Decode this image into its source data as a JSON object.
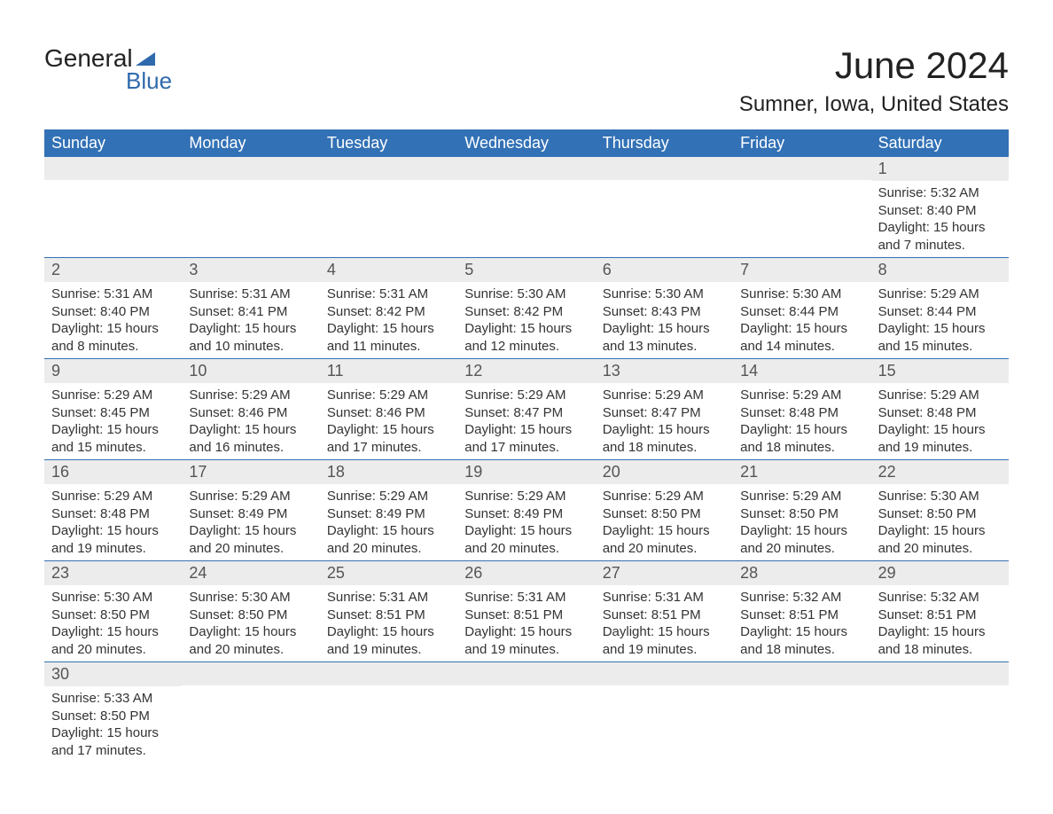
{
  "logo": {
    "top": "General",
    "bottom": "Blue",
    "mark_color": "#2f6aad",
    "text_top_color": "#222222"
  },
  "title": "June 2024",
  "subtitle": "Sumner, Iowa, United States",
  "colors": {
    "header_bg": "#3271b5",
    "header_text": "#ffffff",
    "day_bar_bg": "#ececec",
    "row_divider": "#3271b5",
    "body_text": "#333333"
  },
  "fontsizes": {
    "title": 42,
    "subtitle": 24,
    "header": 18,
    "daynum": 18,
    "body": 15
  },
  "days_of_week": [
    "Sunday",
    "Monday",
    "Tuesday",
    "Wednesday",
    "Thursday",
    "Friday",
    "Saturday"
  ],
  "weeks": [
    [
      {
        "n": "",
        "sr": "",
        "ss": "",
        "dl": ""
      },
      {
        "n": "",
        "sr": "",
        "ss": "",
        "dl": ""
      },
      {
        "n": "",
        "sr": "",
        "ss": "",
        "dl": ""
      },
      {
        "n": "",
        "sr": "",
        "ss": "",
        "dl": ""
      },
      {
        "n": "",
        "sr": "",
        "ss": "",
        "dl": ""
      },
      {
        "n": "",
        "sr": "",
        "ss": "",
        "dl": ""
      },
      {
        "n": "1",
        "sr": "Sunrise: 5:32 AM",
        "ss": "Sunset: 8:40 PM",
        "dl": "Daylight: 15 hours and 7 minutes."
      }
    ],
    [
      {
        "n": "2",
        "sr": "Sunrise: 5:31 AM",
        "ss": "Sunset: 8:40 PM",
        "dl": "Daylight: 15 hours and 8 minutes."
      },
      {
        "n": "3",
        "sr": "Sunrise: 5:31 AM",
        "ss": "Sunset: 8:41 PM",
        "dl": "Daylight: 15 hours and 10 minutes."
      },
      {
        "n": "4",
        "sr": "Sunrise: 5:31 AM",
        "ss": "Sunset: 8:42 PM",
        "dl": "Daylight: 15 hours and 11 minutes."
      },
      {
        "n": "5",
        "sr": "Sunrise: 5:30 AM",
        "ss": "Sunset: 8:42 PM",
        "dl": "Daylight: 15 hours and 12 minutes."
      },
      {
        "n": "6",
        "sr": "Sunrise: 5:30 AM",
        "ss": "Sunset: 8:43 PM",
        "dl": "Daylight: 15 hours and 13 minutes."
      },
      {
        "n": "7",
        "sr": "Sunrise: 5:30 AM",
        "ss": "Sunset: 8:44 PM",
        "dl": "Daylight: 15 hours and 14 minutes."
      },
      {
        "n": "8",
        "sr": "Sunrise: 5:29 AM",
        "ss": "Sunset: 8:44 PM",
        "dl": "Daylight: 15 hours and 15 minutes."
      }
    ],
    [
      {
        "n": "9",
        "sr": "Sunrise: 5:29 AM",
        "ss": "Sunset: 8:45 PM",
        "dl": "Daylight: 15 hours and 15 minutes."
      },
      {
        "n": "10",
        "sr": "Sunrise: 5:29 AM",
        "ss": "Sunset: 8:46 PM",
        "dl": "Daylight: 15 hours and 16 minutes."
      },
      {
        "n": "11",
        "sr": "Sunrise: 5:29 AM",
        "ss": "Sunset: 8:46 PM",
        "dl": "Daylight: 15 hours and 17 minutes."
      },
      {
        "n": "12",
        "sr": "Sunrise: 5:29 AM",
        "ss": "Sunset: 8:47 PM",
        "dl": "Daylight: 15 hours and 17 minutes."
      },
      {
        "n": "13",
        "sr": "Sunrise: 5:29 AM",
        "ss": "Sunset: 8:47 PM",
        "dl": "Daylight: 15 hours and 18 minutes."
      },
      {
        "n": "14",
        "sr": "Sunrise: 5:29 AM",
        "ss": "Sunset: 8:48 PM",
        "dl": "Daylight: 15 hours and 18 minutes."
      },
      {
        "n": "15",
        "sr": "Sunrise: 5:29 AM",
        "ss": "Sunset: 8:48 PM",
        "dl": "Daylight: 15 hours and 19 minutes."
      }
    ],
    [
      {
        "n": "16",
        "sr": "Sunrise: 5:29 AM",
        "ss": "Sunset: 8:48 PM",
        "dl": "Daylight: 15 hours and 19 minutes."
      },
      {
        "n": "17",
        "sr": "Sunrise: 5:29 AM",
        "ss": "Sunset: 8:49 PM",
        "dl": "Daylight: 15 hours and 20 minutes."
      },
      {
        "n": "18",
        "sr": "Sunrise: 5:29 AM",
        "ss": "Sunset: 8:49 PM",
        "dl": "Daylight: 15 hours and 20 minutes."
      },
      {
        "n": "19",
        "sr": "Sunrise: 5:29 AM",
        "ss": "Sunset: 8:49 PM",
        "dl": "Daylight: 15 hours and 20 minutes."
      },
      {
        "n": "20",
        "sr": "Sunrise: 5:29 AM",
        "ss": "Sunset: 8:50 PM",
        "dl": "Daylight: 15 hours and 20 minutes."
      },
      {
        "n": "21",
        "sr": "Sunrise: 5:29 AM",
        "ss": "Sunset: 8:50 PM",
        "dl": "Daylight: 15 hours and 20 minutes."
      },
      {
        "n": "22",
        "sr": "Sunrise: 5:30 AM",
        "ss": "Sunset: 8:50 PM",
        "dl": "Daylight: 15 hours and 20 minutes."
      }
    ],
    [
      {
        "n": "23",
        "sr": "Sunrise: 5:30 AM",
        "ss": "Sunset: 8:50 PM",
        "dl": "Daylight: 15 hours and 20 minutes."
      },
      {
        "n": "24",
        "sr": "Sunrise: 5:30 AM",
        "ss": "Sunset: 8:50 PM",
        "dl": "Daylight: 15 hours and 20 minutes."
      },
      {
        "n": "25",
        "sr": "Sunrise: 5:31 AM",
        "ss": "Sunset: 8:51 PM",
        "dl": "Daylight: 15 hours and 19 minutes."
      },
      {
        "n": "26",
        "sr": "Sunrise: 5:31 AM",
        "ss": "Sunset: 8:51 PM",
        "dl": "Daylight: 15 hours and 19 minutes."
      },
      {
        "n": "27",
        "sr": "Sunrise: 5:31 AM",
        "ss": "Sunset: 8:51 PM",
        "dl": "Daylight: 15 hours and 19 minutes."
      },
      {
        "n": "28",
        "sr": "Sunrise: 5:32 AM",
        "ss": "Sunset: 8:51 PM",
        "dl": "Daylight: 15 hours and 18 minutes."
      },
      {
        "n": "29",
        "sr": "Sunrise: 5:32 AM",
        "ss": "Sunset: 8:51 PM",
        "dl": "Daylight: 15 hours and 18 minutes."
      }
    ],
    [
      {
        "n": "30",
        "sr": "Sunrise: 5:33 AM",
        "ss": "Sunset: 8:50 PM",
        "dl": "Daylight: 15 hours and 17 minutes."
      },
      {
        "n": "",
        "sr": "",
        "ss": "",
        "dl": ""
      },
      {
        "n": "",
        "sr": "",
        "ss": "",
        "dl": ""
      },
      {
        "n": "",
        "sr": "",
        "ss": "",
        "dl": ""
      },
      {
        "n": "",
        "sr": "",
        "ss": "",
        "dl": ""
      },
      {
        "n": "",
        "sr": "",
        "ss": "",
        "dl": ""
      },
      {
        "n": "",
        "sr": "",
        "ss": "",
        "dl": ""
      }
    ]
  ]
}
